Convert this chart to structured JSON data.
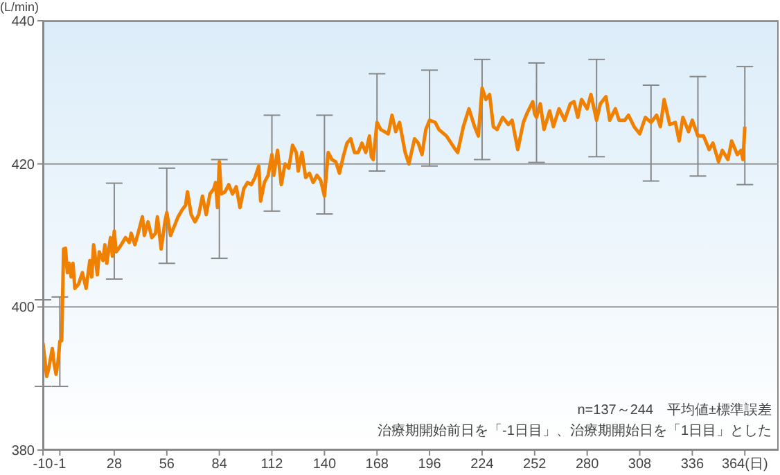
{
  "chart_data": {
    "type": "line",
    "ylabel": "(L/min)",
    "x": [
      -10,
      -8,
      -7,
      -5,
      -4,
      -3,
      -2,
      -1,
      0,
      1,
      2,
      3,
      4,
      5,
      6,
      7,
      9,
      11,
      13,
      15,
      16,
      17,
      19,
      20,
      22,
      23,
      24,
      26,
      27,
      28,
      29,
      31,
      34,
      36,
      37,
      39,
      41,
      43,
      44,
      46,
      48,
      50,
      51,
      53,
      55,
      56,
      58,
      60,
      62,
      64,
      66,
      67,
      69,
      71,
      73,
      75,
      77,
      79,
      81,
      82,
      83,
      84,
      85,
      87,
      89,
      91,
      93,
      95,
      97,
      99,
      101,
      103,
      105,
      106,
      108,
      110,
      112,
      113,
      115,
      117,
      119,
      121,
      123,
      125,
      126,
      128,
      130,
      132,
      134,
      136,
      138,
      140,
      142,
      144,
      146,
      148,
      150,
      152,
      154,
      156,
      158,
      160,
      162,
      164,
      165,
      166,
      168,
      170,
      172,
      174,
      176,
      178,
      180,
      183,
      185,
      188,
      190,
      192,
      194,
      196,
      199,
      201,
      205,
      209,
      211,
      214,
      217,
      220,
      222,
      224,
      226,
      228,
      230,
      232,
      235,
      238,
      240,
      243,
      246,
      248,
      251,
      252,
      253,
      255,
      257,
      260,
      262,
      265,
      268,
      271,
      273,
      275,
      277,
      280,
      282,
      285,
      287,
      290,
      292,
      295,
      297,
      300,
      302,
      305,
      308,
      311,
      314,
      317,
      319,
      321,
      324,
      327,
      329,
      331,
      334,
      336,
      339,
      342,
      345,
      347,
      350,
      352,
      355,
      357,
      360,
      362,
      363,
      364
    ],
    "series": [
      {
        "color": "#f08000",
        "values": [
          395,
          390.3,
          391.3,
          394.2,
          392,
          390.6,
          392.3,
          395.2,
          395.3,
          408.1,
          408.2,
          404.8,
          406.1,
          404.2,
          406.1,
          402.6,
          403.2,
          404.8,
          402.6,
          406.5,
          404.2,
          408.7,
          404.5,
          407.7,
          406.5,
          408.7,
          406.1,
          409.7,
          407.1,
          410.6,
          407.7,
          408.4,
          409.7,
          409,
          410.3,
          408.7,
          410.6,
          412.6,
          410,
          411.9,
          409.7,
          410.3,
          412.6,
          408.1,
          411.9,
          413.2,
          410,
          411.3,
          412.6,
          413.5,
          414.2,
          416.1,
          412.9,
          411.9,
          412.9,
          415.5,
          412.9,
          415.8,
          416.5,
          417.4,
          413.9,
          420.3,
          415.8,
          416.1,
          417.1,
          415.8,
          416.8,
          413.9,
          416.5,
          417.4,
          417.1,
          418.1,
          419.7,
          414.8,
          417.4,
          418.4,
          421.3,
          418.4,
          421.9,
          417.1,
          420,
          419.4,
          422.6,
          421.6,
          419,
          421.6,
          418.1,
          418.7,
          417.4,
          418.4,
          417.7,
          415.5,
          421.6,
          420.6,
          420.3,
          418.7,
          421,
          422.9,
          423.5,
          421.6,
          421.6,
          422.9,
          421.6,
          423.9,
          421,
          420.6,
          425.8,
          424.8,
          424.5,
          424.2,
          426.8,
          424.5,
          425.8,
          421.6,
          420,
          423.5,
          422.9,
          421.3,
          424.8,
          426.1,
          425.8,
          424.8,
          423.9,
          422.3,
          421.6,
          425.2,
          427.7,
          425.2,
          423.9,
          430.6,
          429,
          429.7,
          425.2,
          424.8,
          426.5,
          425.5,
          426.1,
          422,
          425.8,
          427.1,
          428.7,
          427,
          426.5,
          428.4,
          424.8,
          427.4,
          425.2,
          427.7,
          426.1,
          428.4,
          428.7,
          426.5,
          429,
          427.7,
          429.7,
          426.1,
          428.4,
          429.4,
          426.1,
          427.7,
          426.1,
          426.1,
          426.8,
          425.2,
          424.2,
          426.5,
          425.8,
          426.8,
          425.2,
          429,
          425.5,
          425.8,
          423.2,
          426.5,
          424.5,
          426.1,
          423.9,
          423.9,
          422,
          422.9,
          420.3,
          421.9,
          420.6,
          423.2,
          421.3,
          421.9,
          420.6,
          425.2
        ],
        "errors": [
          [
            388.9,
            401.0
          ],
          null,
          null,
          null,
          null,
          null,
          null,
          [
            388.9,
            401.4
          ],
          null,
          null,
          null,
          null,
          null,
          null,
          null,
          null,
          null,
          null,
          null,
          null,
          null,
          null,
          null,
          null,
          null,
          null,
          null,
          null,
          null,
          [
            403.9,
            417.3
          ],
          null,
          null,
          null,
          null,
          null,
          null,
          null,
          null,
          null,
          null,
          null,
          null,
          null,
          null,
          null,
          [
            406.1,
            419.4
          ],
          null,
          null,
          null,
          null,
          null,
          null,
          null,
          null,
          null,
          null,
          null,
          null,
          null,
          null,
          null,
          [
            406.8,
            420.6
          ],
          null,
          null,
          null,
          null,
          null,
          null,
          null,
          null,
          null,
          null,
          null,
          null,
          null,
          null,
          [
            413.4,
            426.8
          ],
          null,
          null,
          null,
          null,
          null,
          null,
          null,
          null,
          null,
          null,
          null,
          null,
          null,
          null,
          [
            413.0,
            426.8
          ],
          null,
          null,
          null,
          null,
          null,
          null,
          null,
          null,
          null,
          null,
          null,
          null,
          null,
          null,
          [
            419.0,
            432.6
          ],
          null,
          null,
          null,
          null,
          null,
          null,
          null,
          null,
          null,
          null,
          null,
          null,
          [
            419.7,
            433.1
          ],
          null,
          null,
          null,
          null,
          null,
          null,
          null,
          null,
          null,
          [
            420.6,
            434.6
          ],
          null,
          null,
          null,
          null,
          null,
          null,
          null,
          null,
          null,
          null,
          null,
          null,
          [
            420.2,
            434.1
          ],
          null,
          null,
          null,
          null,
          null,
          null,
          null,
          null,
          null,
          null,
          null,
          null,
          [
            421.0,
            434.6
          ],
          null,
          null,
          null,
          null,
          null,
          null,
          null,
          null,
          null,
          null,
          [
            417.6,
            431.0
          ],
          null,
          null,
          null,
          null,
          null,
          null,
          null,
          null,
          null,
          [
            418.3,
            432.2
          ],
          null,
          null,
          null,
          null,
          null,
          null,
          null,
          null,
          null,
          null,
          [
            417.1,
            433.6
          ]
        ]
      }
    ],
    "xlim": [
      -10,
      382
    ],
    "xticks": [
      -10,
      -1,
      28,
      56,
      84,
      112,
      140,
      168,
      196,
      224,
      252,
      280,
      308,
      336,
      {
        "value": 364,
        "label": "364(日)"
      }
    ],
    "ylim": [
      380,
      440
    ],
    "yticks": [
      380,
      400,
      420,
      440
    ],
    "grid": "y",
    "marker": "none",
    "line_style": "solid",
    "legend": false,
    "annotations": [
      "n=137～244　平均値±標準誤差",
      "治療期開始前日を「-1日目」、治療期開始日を「1日目」とした"
    ]
  }
}
